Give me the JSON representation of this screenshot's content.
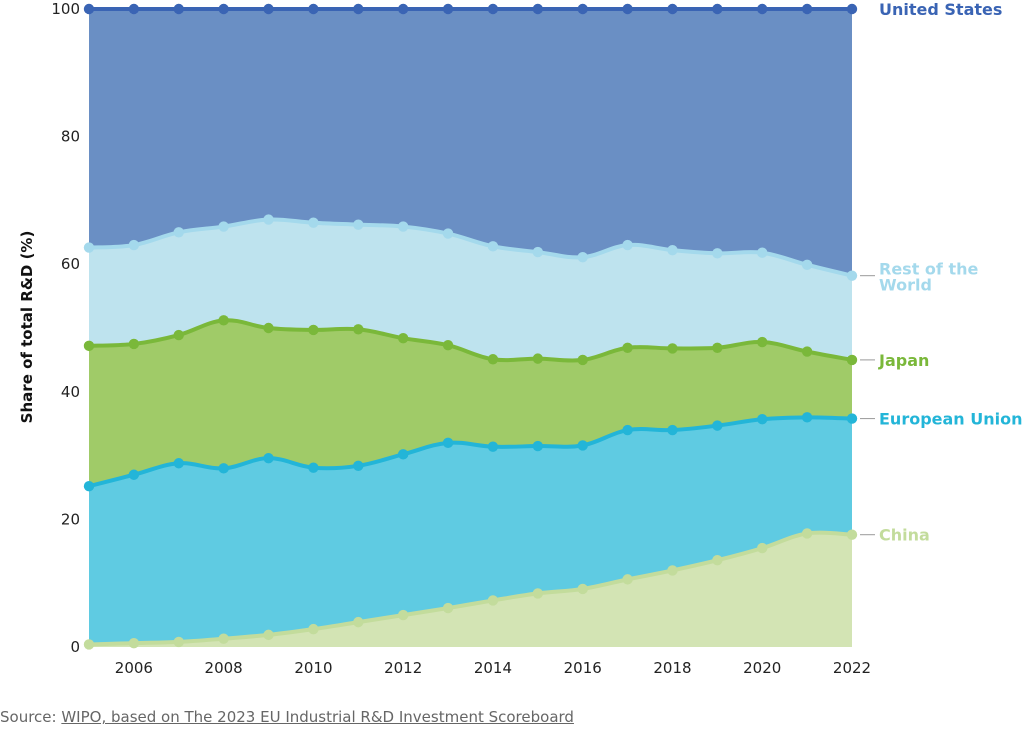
{
  "chart_data": {
    "type": "area",
    "stacked": true,
    "ylabel": "Share of total R&D (%)",
    "xlabel": "",
    "ylim": [
      0,
      100
    ],
    "xlim": [
      2005,
      2022
    ],
    "yticks": [
      "0",
      "20",
      "40",
      "60",
      "80",
      "100"
    ],
    "xticks": [
      "2006",
      "2008",
      "2010",
      "2012",
      "2014",
      "2016",
      "2018",
      "2020",
      "2022"
    ],
    "grid": false,
    "x": [
      2005,
      2006,
      2007,
      2008,
      2009,
      2010,
      2011,
      2012,
      2013,
      2014,
      2015,
      2016,
      2017,
      2018,
      2019,
      2020,
      2021,
      2022
    ],
    "series": [
      {
        "name": "China",
        "label": "China",
        "color": "#d3e4b4",
        "line_color": "#c3dc9c",
        "cumulative": [
          0.4,
          0.6,
          0.8,
          1.3,
          1.9,
          2.8,
          3.9,
          5.0,
          6.1,
          7.3,
          8.4,
          9.1,
          10.6,
          12.0,
          13.6,
          15.5,
          17.8,
          17.6
        ]
      },
      {
        "name": "European Union",
        "label": "European Union",
        "color": "#5fcbe2",
        "line_color": "#23b5d8",
        "cumulative": [
          25.2,
          27.0,
          28.8,
          28.0,
          29.6,
          28.1,
          28.4,
          30.2,
          32.0,
          31.4,
          31.5,
          31.6,
          34.0,
          34.0,
          34.7,
          35.7,
          36.0,
          35.8
        ]
      },
      {
        "name": "Japan",
        "label": "Japan",
        "color": "#a0cb68",
        "line_color": "#7ab83a",
        "cumulative": [
          47.2,
          47.5,
          48.9,
          51.2,
          50.0,
          49.7,
          49.8,
          48.4,
          47.3,
          45.1,
          45.2,
          45.0,
          46.9,
          46.8,
          46.9,
          47.8,
          46.3,
          45.0
        ]
      },
      {
        "name": "Rest of the World",
        "label": [
          "Rest of the",
          "World"
        ],
        "color": "#bee3ee",
        "line_color": "#a4d9ec",
        "cumulative": [
          62.6,
          63.0,
          65.0,
          65.9,
          67.0,
          66.5,
          66.2,
          65.9,
          64.8,
          62.8,
          61.9,
          61.1,
          63.0,
          62.2,
          61.7,
          61.8,
          59.9,
          58.2
        ]
      },
      {
        "name": "United States",
        "label": "United States",
        "color": "#6a8fc4",
        "line_color": "#3a64b4",
        "cumulative": [
          100,
          100,
          100,
          100,
          100,
          100,
          100,
          100,
          100,
          100,
          100,
          100,
          100,
          100,
          100,
          100,
          100,
          100
        ]
      }
    ]
  },
  "source": {
    "prefix": "Source: ",
    "link_text": "WIPO, based on The 2023 EU Industrial R&D Investment Scoreboard"
  }
}
